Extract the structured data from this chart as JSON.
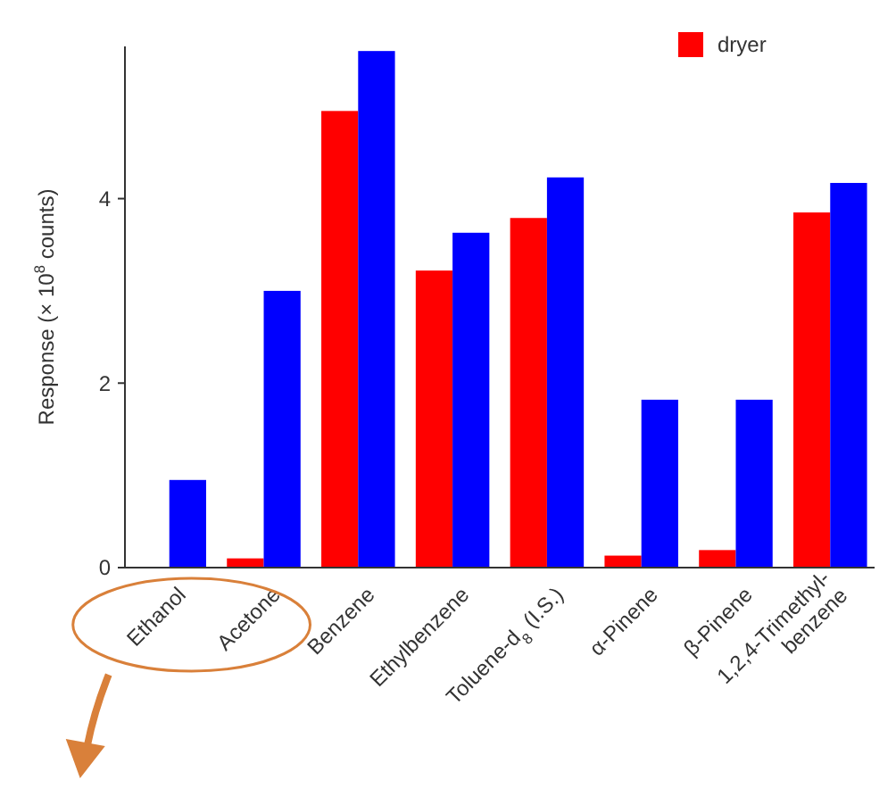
{
  "chart_data": {
    "type": "bar",
    "ylabel": "Response (× 10$^{8}$ counts)",
    "categories": [
      "Ethanol",
      "Acetone",
      "Benzene",
      "Ethylbenzene",
      "Toluene-d$_{8}$ (I.S.)",
      "α-Pinene",
      "β-Pinene",
      "1,2,4-Trimethyl-\nbenzene"
    ],
    "series": [
      {
        "name": "dryer",
        "color": "#ff0000",
        "values": [
          0,
          0.1,
          4.95,
          3.22,
          3.79,
          0.13,
          0.19,
          3.85
        ]
      },
      {
        "color": "#0000ff",
        "values": [
          0.95,
          3.0,
          5.6,
          3.63,
          4.23,
          1.82,
          1.82,
          4.17
        ]
      }
    ],
    "ylim": [
      0,
      5.65
    ],
    "yticks": [
      0,
      2,
      4
    ],
    "grid": false,
    "legend": "top right"
  }
}
